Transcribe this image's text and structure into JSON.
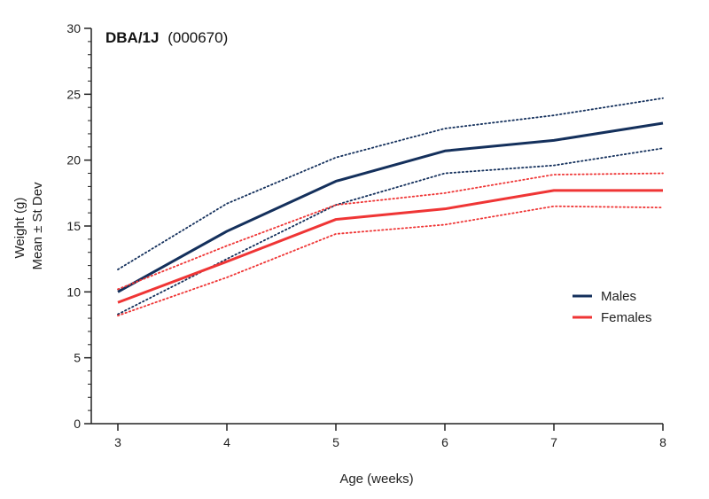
{
  "chart_data": {
    "type": "line",
    "title": "DBA/1J",
    "subtitle": "(000670)",
    "xlabel": "Age (weeks)",
    "ylabel": [
      "Weight (g)",
      "Mean ± St Dev"
    ],
    "x": [
      3,
      4,
      5,
      6,
      7,
      8
    ],
    "xlim": [
      3,
      8
    ],
    "ylim": [
      0,
      30
    ],
    "yticks": [
      0,
      5,
      10,
      15,
      20,
      25,
      30
    ],
    "grid": false,
    "legend_position": "right",
    "series": [
      {
        "name": "Males",
        "color": "#14305c",
        "values": [
          10.0,
          14.6,
          18.4,
          20.7,
          21.5,
          22.8
        ],
        "upper": [
          11.7,
          16.7,
          20.2,
          22.4,
          23.4,
          24.7
        ],
        "lower": [
          8.3,
          12.5,
          16.6,
          19.0,
          19.6,
          20.9
        ]
      },
      {
        "name": "Females",
        "color": "#ef3535",
        "values": [
          9.2,
          12.3,
          15.5,
          16.3,
          17.7,
          17.7
        ],
        "upper": [
          10.2,
          13.5,
          16.6,
          17.5,
          18.9,
          19.0
        ],
        "lower": [
          8.2,
          11.1,
          14.4,
          15.1,
          16.5,
          16.4
        ]
      }
    ]
  }
}
